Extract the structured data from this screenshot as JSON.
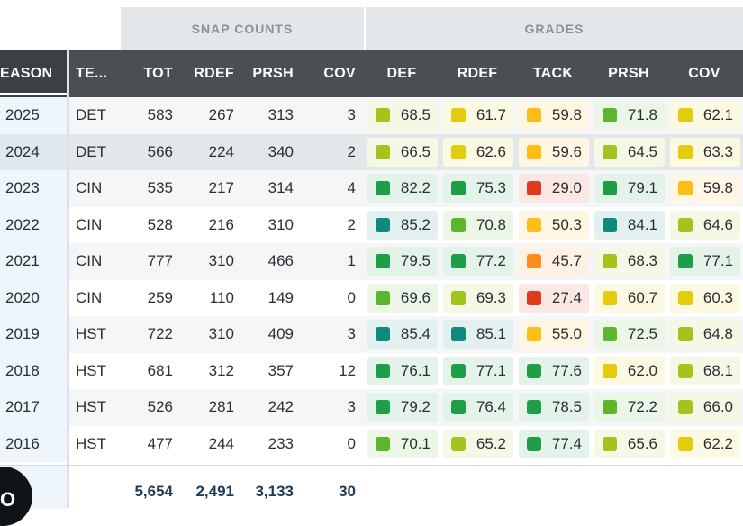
{
  "groups": {
    "snap_counts": "SNAP COUNTS",
    "grades": "GRADES"
  },
  "headers": {
    "season": "EASON",
    "team": "TE...",
    "tot": "TOT",
    "rdef": "RDEF",
    "prsh": "PRSH",
    "cov": "COV",
    "g_def": "DEF",
    "g_rdef": "RDEF",
    "g_tack": "TACK",
    "g_prsh": "PRSH",
    "g_cov": "COV"
  },
  "rows": [
    {
      "season": "2025",
      "team": "DET",
      "tot": "583",
      "rdef": "267",
      "prsh": "313",
      "cov": "3",
      "grades": [
        "68.5",
        "61.7",
        "59.8",
        "71.8",
        "62.1"
      ]
    },
    {
      "season": "2024",
      "team": "DET",
      "tot": "566",
      "rdef": "224",
      "prsh": "340",
      "cov": "2",
      "grades": [
        "66.5",
        "62.6",
        "59.6",
        "64.5",
        "63.3"
      ]
    },
    {
      "season": "2023",
      "team": "CIN",
      "tot": "535",
      "rdef": "217",
      "prsh": "314",
      "cov": "4",
      "grades": [
        "82.2",
        "75.3",
        "29.0",
        "79.1",
        "59.8"
      ]
    },
    {
      "season": "2022",
      "team": "CIN",
      "tot": "528",
      "rdef": "216",
      "prsh": "310",
      "cov": "2",
      "grades": [
        "85.2",
        "70.8",
        "50.3",
        "84.1",
        "64.6"
      ]
    },
    {
      "season": "2021",
      "team": "CIN",
      "tot": "777",
      "rdef": "310",
      "prsh": "466",
      "cov": "1",
      "grades": [
        "79.5",
        "77.2",
        "45.7",
        "68.3",
        "77.1"
      ]
    },
    {
      "season": "2020",
      "team": "CIN",
      "tot": "259",
      "rdef": "110",
      "prsh": "149",
      "cov": "0",
      "grades": [
        "69.6",
        "69.3",
        "27.4",
        "60.7",
        "60.3"
      ]
    },
    {
      "season": "2019",
      "team": "HST",
      "tot": "722",
      "rdef": "310",
      "prsh": "409",
      "cov": "3",
      "grades": [
        "85.4",
        "85.1",
        "55.0",
        "72.5",
        "64.8"
      ]
    },
    {
      "season": "2018",
      "team": "HST",
      "tot": "681",
      "rdef": "312",
      "prsh": "357",
      "cov": "12",
      "grades": [
        "76.1",
        "77.1",
        "77.6",
        "62.0",
        "68.1"
      ]
    },
    {
      "season": "2017",
      "team": "HST",
      "tot": "526",
      "rdef": "281",
      "prsh": "242",
      "cov": "3",
      "grades": [
        "79.2",
        "76.4",
        "78.5",
        "72.2",
        "66.0"
      ]
    },
    {
      "season": "2016",
      "team": "HST",
      "tot": "477",
      "rdef": "244",
      "prsh": "233",
      "cov": "0",
      "grades": [
        "70.1",
        "65.2",
        "77.4",
        "65.6",
        "62.2"
      ]
    }
  ],
  "totals": {
    "tot": "5,654",
    "rdef": "2,491",
    "prsh": "3,133",
    "cov": "30"
  },
  "floating_button": {
    "label": "O"
  },
  "grade_colors": {
    "elite": "#0e8a7a",
    "high": "#1f9e48",
    "good": "#5bb62d",
    "above": "#a3c41c",
    "avg": "#e3cc0b",
    "below": "#fcbd14",
    "low": "#fb8c1d",
    "poor": "#e03a1e"
  }
}
